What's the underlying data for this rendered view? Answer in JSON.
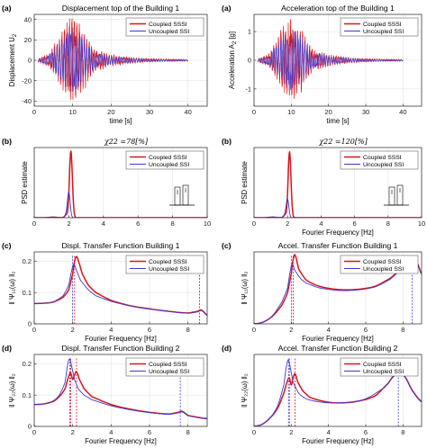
{
  "colors": {
    "coupled": "#d9151b",
    "uncoupled": "#3a3ad6",
    "axis": "#222222",
    "grid": "#e3e3e3"
  },
  "legend": {
    "coupled": "Coupled SSSI",
    "uncoupled": "Uncoupled SSI"
  },
  "chart_data": [
    {
      "id": "p1",
      "type": "line",
      "panel_label": "(a)",
      "title": "Displacement top of the Building 1",
      "xlabel": "time [s]",
      "ylabel": "Displacement U",
      "ylabel_sub": "2",
      "xlim": [
        0,
        45
      ],
      "ylim": [
        -45,
        45
      ],
      "xticks": [
        0,
        10,
        20,
        30,
        40
      ],
      "yticks": [
        -40,
        -20,
        0,
        20,
        40
      ],
      "xtick_labels": [
        "0",
        "10",
        "20",
        "30",
        "40"
      ],
      "ytick_labels": [
        "-40",
        "-20",
        "0",
        "20",
        "40"
      ],
      "signal": {
        "start": 1,
        "end": 40,
        "peak_time": 10,
        "coupled_amp": 44,
        "uncoupled_amp": 32
      },
      "series": [
        {
          "name": "Coupled SSSI"
        },
        {
          "name": "Uncoupled SSI"
        }
      ]
    },
    {
      "id": "p2",
      "type": "line",
      "panel_label": "(a)",
      "title": "Acceleration top of the Building 1",
      "xlabel": "time [s]",
      "ylabel": "Acceleration A",
      "ylabel_sub": "2",
      "ylabel_unit": " [g]",
      "xlim": [
        0,
        45
      ],
      "ylim": [
        -1.6,
        1.6
      ],
      "xticks": [
        0,
        10,
        20,
        30,
        40
      ],
      "yticks": [
        -1,
        0,
        1
      ],
      "xtick_labels": [
        "0",
        "10",
        "20",
        "30",
        "40"
      ],
      "ytick_labels": [
        "-1",
        "0",
        "1"
      ],
      "signal": {
        "start": 1,
        "end": 40,
        "peak_time": 10,
        "coupled_amp": 1.5,
        "uncoupled_amp": 1.1
      },
      "series": [
        {
          "name": "Coupled SSSI"
        },
        {
          "name": "Uncoupled SSI"
        }
      ]
    },
    {
      "id": "p3",
      "type": "line",
      "panel_label": "(b)",
      "subtitle": "χ22 =78[%]",
      "xlabel": "",
      "ylabel": "PSD estimate",
      "xlim": [
        0,
        10
      ],
      "ylim": [
        0,
        1000
      ],
      "xticks": [
        0,
        2,
        4,
        6,
        8,
        10
      ],
      "yticks": [],
      "xtick_labels": [
        "0",
        "2",
        "4",
        "6",
        "8",
        "10"
      ],
      "ytick_labels": [],
      "peaks": {
        "coupled": {
          "f": 2.12,
          "a": 950,
          "w": 0.12
        },
        "uncoupled": {
          "f": 2.0,
          "a": 360,
          "w": 0.11
        }
      },
      "series": [
        {
          "name": "Coupled SSSI"
        },
        {
          "name": "Uncoupled SSI"
        }
      ]
    },
    {
      "id": "p4",
      "type": "line",
      "panel_label": "(b)",
      "subtitle": "χ22 =120[%]",
      "xlabel": "Fourier Frequency [Hz]",
      "ylabel": "PSD estimate",
      "xlim": [
        0,
        10
      ],
      "ylim": [
        0,
        1000
      ],
      "xticks": [
        0,
        2,
        4,
        6,
        8,
        10
      ],
      "yticks": [],
      "xtick_labels": [
        "0",
        "2",
        "4",
        "6",
        "8",
        "10"
      ],
      "ytick_labels": [],
      "peaks": {
        "coupled": {
          "f": 2.12,
          "a": 940,
          "w": 0.12
        },
        "uncoupled": {
          "f": 2.0,
          "a": 260,
          "w": 0.11
        }
      },
      "series": [
        {
          "name": "Coupled SSSI"
        },
        {
          "name": "Uncoupled SSI"
        }
      ]
    },
    {
      "id": "p5",
      "type": "line",
      "panel_label": "(c)",
      "title": "Displ. Transfer Function Building 1",
      "xlabel": "Fourier Frequency [Hz]",
      "ylabel": "‖ Ψ₁₁(ω) ‖₂",
      "xlim": [
        0,
        9
      ],
      "ylim": [
        0,
        0.23
      ],
      "xticks": [
        0,
        2,
        4,
        6,
        8
      ],
      "yticks": [
        0,
        0.1,
        0.2
      ],
      "xtick_labels": [
        "0",
        "2",
        "4",
        "6",
        "8"
      ],
      "ytick_labels": [
        "0",
        "0.1",
        "0.2"
      ],
      "series": [
        {
          "name": "Coupled SSSI",
          "x": [
            0,
            0.5,
            1,
            1.5,
            1.8,
            2.0,
            2.1,
            2.2,
            2.3,
            2.5,
            2.8,
            3.2,
            4,
            5,
            6,
            7,
            8,
            8.5,
            8.7,
            9
          ],
          "y": [
            0.065,
            0.066,
            0.07,
            0.085,
            0.11,
            0.16,
            0.2,
            0.215,
            0.2,
            0.16,
            0.125,
            0.1,
            0.075,
            0.058,
            0.048,
            0.04,
            0.035,
            0.04,
            0.044,
            0.028
          ]
        },
        {
          "name": "Uncoupled SSI",
          "x": [
            0,
            0.5,
            1,
            1.5,
            1.8,
            1.95,
            2.05,
            2.2,
            2.4,
            2.8,
            3.2,
            4,
            5,
            6,
            7,
            8,
            8.5,
            8.7,
            9
          ],
          "y": [
            0.065,
            0.066,
            0.071,
            0.09,
            0.125,
            0.17,
            0.19,
            0.17,
            0.14,
            0.11,
            0.09,
            0.072,
            0.057,
            0.047,
            0.04,
            0.034,
            0.038,
            0.042,
            0.027
          ]
        }
      ],
      "vlines": [
        {
          "x": 2.1,
          "series": "Coupled SSSI"
        },
        {
          "x": 2.0,
          "series": "Uncoupled SSI"
        },
        {
          "x": 8.6,
          "series": "Uncoupled SSI"
        }
      ]
    },
    {
      "id": "p6",
      "type": "line",
      "panel_label": "(c)",
      "title": "Accel. Transfer Function Building 1",
      "xlabel": "Fourier Frequency [Hz]",
      "ylabel": "‖ Ψ₁₁(ω) ‖₂",
      "xlim": [
        0,
        9
      ],
      "ylim": [
        0,
        2.3
      ],
      "xticks": [
        0,
        2,
        4,
        6,
        8
      ],
      "yticks": [],
      "xtick_labels": [
        "0",
        "2",
        "4",
        "6",
        "8"
      ],
      "ytick_labels": [],
      "series": [
        {
          "name": "Coupled SSSI",
          "x": [
            0,
            0.5,
            1,
            1.5,
            1.8,
            2.0,
            2.1,
            2.2,
            2.4,
            2.8,
            3.5,
            4.5,
            5.5,
            6.5,
            7.3,
            7.8,
            8.2,
            8.5,
            8.8,
            9
          ],
          "y": [
            0,
            0.06,
            0.25,
            0.6,
            1.0,
            1.6,
            2.05,
            2.2,
            1.75,
            1.4,
            1.2,
            1.1,
            1.1,
            1.2,
            1.45,
            1.7,
            1.95,
            2.05,
            1.9,
            1.6
          ]
        },
        {
          "name": "Uncoupled SSI",
          "x": [
            0,
            0.5,
            1,
            1.5,
            1.8,
            1.95,
            2.05,
            2.2,
            2.5,
            2.8,
            3.5,
            4.5,
            5.5,
            6.5,
            7.3,
            7.8,
            8.2,
            8.5,
            8.8,
            9
          ],
          "y": [
            0,
            0.06,
            0.27,
            0.7,
            1.15,
            1.7,
            1.9,
            1.7,
            1.45,
            1.3,
            1.15,
            1.07,
            1.08,
            1.18,
            1.42,
            1.68,
            1.93,
            2.03,
            1.88,
            1.58
          ]
        }
      ],
      "vlines": [
        {
          "x": 2.1,
          "series": "Coupled SSSI"
        },
        {
          "x": 2.0,
          "series": "Uncoupled SSI"
        },
        {
          "x": 8.5,
          "series": "Uncoupled SSI"
        }
      ]
    },
    {
      "id": "p7",
      "type": "line",
      "panel_label": "(d)",
      "title": "Displ. Transfer Function Building 2",
      "xlabel": "Fourier Frequency [Hz]",
      "ylabel": "‖ Ψ₂₂(ω) ‖₂",
      "xlim": [
        0,
        9
      ],
      "ylim": [
        0,
        0.23
      ],
      "xticks": [
        0,
        2,
        4,
        6,
        8
      ],
      "yticks": [
        0,
        0.1,
        0.2
      ],
      "xtick_labels": [
        "0",
        "2",
        "4",
        "6",
        "8"
      ],
      "ytick_labels": [
        "0",
        "0.1",
        "0.2"
      ],
      "series": [
        {
          "name": "Coupled SSSI",
          "x": [
            0,
            0.5,
            1,
            1.3,
            1.6,
            1.8,
            1.9,
            2.0,
            2.1,
            2.2,
            2.35,
            2.6,
            3,
            4,
            5,
            6,
            7,
            7.5,
            7.7,
            8,
            9
          ],
          "y": [
            0.07,
            0.072,
            0.08,
            0.095,
            0.12,
            0.16,
            0.17,
            0.15,
            0.165,
            0.175,
            0.15,
            0.12,
            0.095,
            0.07,
            0.055,
            0.045,
            0.04,
            0.045,
            0.048,
            0.035,
            0.025
          ]
        },
        {
          "name": "Uncoupled SSI",
          "x": [
            0,
            0.5,
            1,
            1.3,
            1.6,
            1.75,
            1.85,
            1.95,
            2.1,
            2.3,
            2.6,
            3,
            4,
            5,
            6,
            7,
            7.5,
            7.7,
            8,
            9
          ],
          "y": [
            0.07,
            0.072,
            0.082,
            0.1,
            0.14,
            0.2,
            0.215,
            0.19,
            0.15,
            0.12,
            0.1,
            0.085,
            0.066,
            0.053,
            0.044,
            0.039,
            0.043,
            0.046,
            0.034,
            0.024
          ]
        }
      ],
      "vlines": [
        {
          "x": 1.85,
          "series": "Uncoupled SSI"
        },
        {
          "x": 1.9,
          "series": "Coupled SSSI"
        },
        {
          "x": 2.2,
          "series": "Coupled SSSI"
        },
        {
          "x": 7.6,
          "series": "Uncoupled SSI"
        }
      ]
    },
    {
      "id": "p8",
      "type": "line",
      "panel_label": "(d)",
      "title": "Accel. Transfer Function Building 2",
      "xlabel": "Fourier Frequency [Hz]",
      "ylabel": "‖ Ψ₂₂(ω) ‖₂",
      "xlim": [
        0,
        9
      ],
      "ylim": [
        0,
        2.6
      ],
      "xticks": [
        0,
        2,
        4,
        6,
        8
      ],
      "yticks": [],
      "xtick_labels": [
        "0",
        "2",
        "4",
        "6",
        "8"
      ],
      "ytick_labels": [],
      "series": [
        {
          "name": "Coupled SSSI",
          "x": [
            0,
            0.5,
            1,
            1.3,
            1.6,
            1.8,
            1.9,
            2.0,
            2.1,
            2.2,
            2.35,
            2.6,
            3,
            3.8,
            4.5,
            5.5,
            6.5,
            7.2,
            7.6,
            7.8,
            8.1,
            8.5,
            9
          ],
          "y": [
            0,
            0.1,
            0.4,
            0.7,
            1.2,
            1.65,
            1.75,
            1.5,
            1.75,
            1.9,
            1.6,
            1.3,
            1.05,
            0.9,
            0.85,
            0.9,
            1.1,
            1.55,
            1.9,
            2.0,
            1.8,
            1.3,
            0.9
          ]
        },
        {
          "name": "Uncoupled SSI",
          "x": [
            0,
            0.5,
            1,
            1.3,
            1.6,
            1.75,
            1.85,
            1.95,
            2.1,
            2.4,
            2.8,
            3.2,
            4,
            5,
            6,
            7,
            7.5,
            7.8,
            8.1,
            8.5,
            9
          ],
          "y": [
            0,
            0.1,
            0.42,
            0.8,
            1.5,
            2.2,
            2.4,
            2.1,
            1.6,
            1.2,
            1.0,
            0.92,
            0.85,
            0.87,
            1.0,
            1.4,
            1.8,
            1.98,
            1.78,
            1.28,
            0.88
          ]
        }
      ],
      "vlines": [
        {
          "x": 1.85,
          "series": "Uncoupled SSI"
        },
        {
          "x": 1.9,
          "series": "Coupled SSSI"
        },
        {
          "x": 2.2,
          "series": "Coupled SSSI"
        },
        {
          "x": 7.75,
          "series": "Uncoupled SSI"
        }
      ]
    }
  ]
}
